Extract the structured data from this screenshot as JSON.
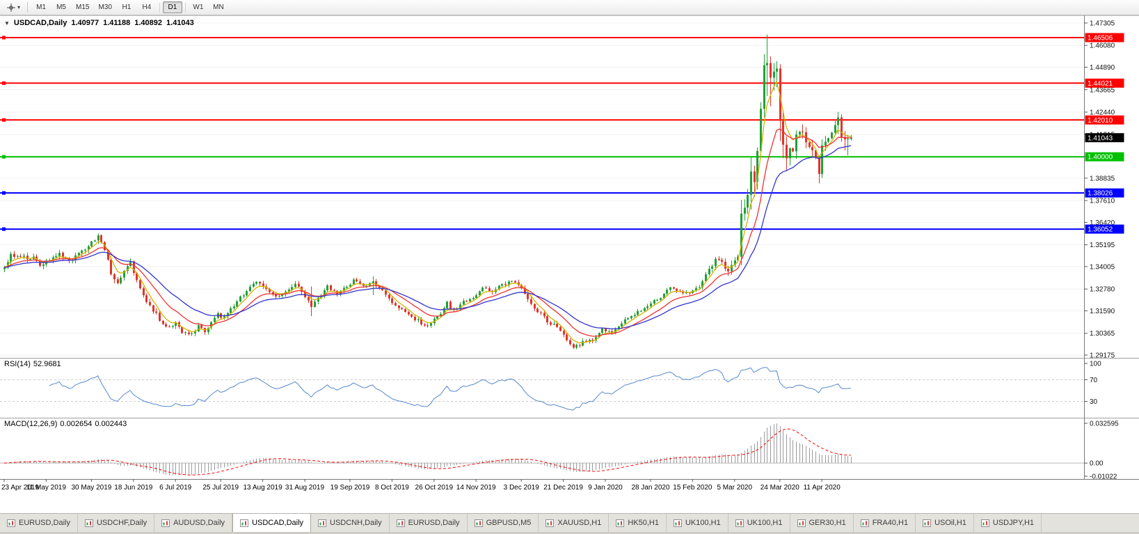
{
  "toolbar": {
    "cursor_tool_tooltip": "Cursor",
    "dropdown_caret": "▾",
    "timeframes": [
      {
        "label": "M1",
        "active": false
      },
      {
        "label": "M5",
        "active": false
      },
      {
        "label": "M15",
        "active": false
      },
      {
        "label": "M30",
        "active": false
      },
      {
        "label": "H1",
        "active": false
      },
      {
        "label": "H4",
        "active": false
      },
      {
        "label": "D1",
        "active": true
      },
      {
        "label": "W1",
        "active": false
      },
      {
        "label": "MN",
        "active": false
      }
    ]
  },
  "chart": {
    "info_bar": {
      "collapse_arrow": "▼",
      "symbol": "USDCAD,Daily",
      "open": "1.40977",
      "high": "1.41188",
      "low": "1.40892",
      "close": "1.41043"
    },
    "price_axis_ticks": [
      "1.47305",
      "1.46080",
      "1.44890",
      "1.43665",
      "1.42440",
      "1.41215",
      "1.40025",
      "1.38835",
      "1.37610",
      "1.36420",
      "1.35195",
      "1.34005",
      "1.32780",
      "1.31590",
      "1.30365",
      "1.29175"
    ],
    "current_price_tag": {
      "label": "1.41043",
      "color": "#000000"
    },
    "date_axis": [
      "23 Apr 2019",
      "11 May 2019",
      "30 May 2019",
      "18 Jun 2019",
      "6 Jul 2019",
      "25 Jul 2019",
      "13 Aug 2019",
      "31 Aug 2019",
      "19 Sep 2019",
      "8 Oct 2019",
      "26 Oct 2019",
      "14 Nov 2019",
      "3 Dec 2019",
      "21 Dec 2019",
      "9 Jan 2020",
      "28 Jan 2020",
      "15 Feb 2020",
      "5 Mar 2020",
      "24 Mar 2020",
      "11 Apr 2020"
    ]
  },
  "rsi_panel": {
    "label": "RSI(14)",
    "value": "52.9681",
    "axis_labels": [
      "100",
      "70",
      "30"
    ]
  },
  "macd_panel": {
    "label": "MACD(12,26,9)",
    "macd_value": "0.002654",
    "signal_value": "0.002443",
    "axis_labels": [
      "0.032595",
      "0.00",
      "-0.01022"
    ]
  },
  "tab_bar": {
    "tabs": [
      {
        "label": "EURUSD,Daily",
        "active": false
      },
      {
        "label": "USDCHF,Daily",
        "active": false
      },
      {
        "label": "AUDUSD,Daily",
        "active": false
      },
      {
        "label": "USDCAD,Daily",
        "active": true
      },
      {
        "label": "USDCNH,Daily",
        "active": false
      },
      {
        "label": "EURUSD,Daily",
        "active": false
      },
      {
        "label": "GBPUSD,M5",
        "active": false
      },
      {
        "label": "XAUUSD,H1",
        "active": false
      },
      {
        "label": "HK50,H1",
        "active": false
      },
      {
        "label": "UK100,H1",
        "active": false
      },
      {
        "label": "UK100,H1",
        "active": false
      },
      {
        "label": "GER30,H1",
        "active": false
      },
      {
        "label": "FRA40,H1",
        "active": false
      },
      {
        "label": "USOil,H1",
        "active": false
      },
      {
        "label": "USDJPY,H1",
        "active": false
      }
    ]
  },
  "chart_data": {
    "type": "candlestick",
    "title": "USDCAD,Daily",
    "ohlc_last": {
      "open": 1.40977,
      "high": 1.41188,
      "low": 1.40892,
      "close": 1.41043
    },
    "y_ticks": [
      1.47305,
      1.4608,
      1.4489,
      1.43665,
      1.4244,
      1.41215,
      1.40025,
      1.38835,
      1.3761,
      1.3642,
      1.35195,
      1.34005,
      1.3278,
      1.3159,
      1.30365,
      1.29175
    ],
    "horizontal_lines": [
      {
        "price": 1.46506,
        "label": "1.46506",
        "color": "#FF0000"
      },
      {
        "price": 1.44021,
        "label": "1.44021",
        "color": "#FF0000"
      },
      {
        "price": 1.4201,
        "label": "1.42010",
        "color": "#FF0000"
      },
      {
        "price": 1.4,
        "label": "1.40000",
        "color": "#00C000"
      },
      {
        "price": 1.38026,
        "label": "1.38026",
        "color": "#0000FF"
      },
      {
        "price": 1.36052,
        "label": "1.36052",
        "color": "#0000FF"
      }
    ],
    "x_dates": [
      "23 Apr 2019",
      "11 May 2019",
      "30 May 2019",
      "18 Jun 2019",
      "6 Jul 2019",
      "25 Jul 2019",
      "13 Aug 2019",
      "31 Aug 2019",
      "19 Sep 2019",
      "8 Oct 2019",
      "26 Oct 2019",
      "14 Nov 2019",
      "3 Dec 2019",
      "21 Dec 2019",
      "9 Jan 2020",
      "28 Jan 2020",
      "15 Feb 2020",
      "5 Mar 2020",
      "24 Mar 2020",
      "11 Apr 2020"
    ],
    "candle_count": 263,
    "up_color": "#21A038",
    "down_color": "#E0342C",
    "close_anchors": [
      [
        0,
        1.34
      ],
      [
        2,
        1.346
      ],
      [
        5,
        1.3445
      ],
      [
        8,
        1.3455
      ],
      [
        11,
        1.3415
      ],
      [
        14,
        1.3445
      ],
      [
        17,
        1.348
      ],
      [
        20,
        1.3435
      ],
      [
        23,
        1.3465
      ],
      [
        26,
        1.351
      ],
      [
        29,
        1.3555
      ],
      [
        31,
        1.3495
      ],
      [
        33,
        1.336
      ],
      [
        35,
        1.331
      ],
      [
        37,
        1.3385
      ],
      [
        39,
        1.342
      ],
      [
        41,
        1.334
      ],
      [
        43,
        1.325
      ],
      [
        45,
        1.319
      ],
      [
        48,
        1.311
      ],
      [
        51,
        1.307
      ],
      [
        53,
        1.3105
      ],
      [
        55,
        1.304
      ],
      [
        58,
        1.3035
      ],
      [
        60,
        1.3075
      ],
      [
        62,
        1.304
      ],
      [
        64,
        1.309
      ],
      [
        66,
        1.314
      ],
      [
        68,
        1.312
      ],
      [
        70,
        1.3165
      ],
      [
        72,
        1.3215
      ],
      [
        75,
        1.3265
      ],
      [
        78,
        1.332
      ],
      [
        81,
        1.3285
      ],
      [
        84,
        1.3235
      ],
      [
        87,
        1.327
      ],
      [
        90,
        1.331
      ],
      [
        93,
        1.323
      ],
      [
        95,
        1.318
      ],
      [
        98,
        1.3245
      ],
      [
        100,
        1.329
      ],
      [
        103,
        1.3255
      ],
      [
        106,
        1.33
      ],
      [
        109,
        1.333
      ],
      [
        112,
        1.329
      ],
      [
        114,
        1.332
      ],
      [
        117,
        1.327
      ],
      [
        120,
        1.321
      ],
      [
        123,
        1.316
      ],
      [
        126,
        1.313
      ],
      [
        129,
        1.309
      ],
      [
        132,
        1.3085
      ],
      [
        135,
        1.315
      ],
      [
        137,
        1.32
      ],
      [
        139,
        1.316
      ],
      [
        142,
        1.3205
      ],
      [
        145,
        1.3235
      ],
      [
        148,
        1.3285
      ],
      [
        151,
        1.326
      ],
      [
        154,
        1.33
      ],
      [
        157,
        1.332
      ],
      [
        159,
        1.33
      ],
      [
        161,
        1.325
      ],
      [
        164,
        1.317
      ],
      [
        167,
        1.312
      ],
      [
        170,
        1.308
      ],
      [
        173,
        1.302
      ],
      [
        176,
        1.2958
      ],
      [
        179,
        1.299
      ],
      [
        182,
        1.3
      ],
      [
        185,
        1.306
      ],
      [
        188,
        1.3035
      ],
      [
        191,
        1.309
      ],
      [
        194,
        1.314
      ],
      [
        197,
        1.316
      ],
      [
        200,
        1.32
      ],
      [
        203,
        1.323
      ],
      [
        206,
        1.329
      ],
      [
        209,
        1.326
      ],
      [
        212,
        1.3255
      ],
      [
        215,
        1.329
      ],
      [
        218,
        1.339
      ],
      [
        220,
        1.343
      ],
      [
        222,
        1.343
      ],
      [
        224,
        1.336
      ],
      [
        226,
        1.3425
      ],
      [
        228,
        1.369
      ],
      [
        230,
        1.379
      ],
      [
        232,
        1.3862
      ],
      [
        234,
        1.4262
      ],
      [
        236,
        1.4512
      ],
      [
        238,
        1.4465
      ],
      [
        240,
        1.4196
      ],
      [
        242,
        1.3992
      ],
      [
        244,
        1.406
      ],
      [
        246,
        1.413
      ],
      [
        248,
        1.4075
      ],
      [
        250,
        1.4035
      ],
      [
        252,
        1.3906
      ],
      [
        254,
        1.409
      ],
      [
        256,
        1.4135
      ],
      [
        258,
        1.4215
      ],
      [
        260,
        1.4095
      ],
      [
        262,
        1.41043
      ]
    ],
    "vol_anchors": [
      [
        0,
        1.0
      ],
      [
        30,
        1.3
      ],
      [
        45,
        1.1
      ],
      [
        60,
        0.8
      ],
      [
        90,
        0.8
      ],
      [
        120,
        0.8
      ],
      [
        150,
        0.7
      ],
      [
        165,
        0.9
      ],
      [
        180,
        0.8
      ],
      [
        210,
        0.7
      ],
      [
        222,
        1.2
      ],
      [
        226,
        1.8
      ],
      [
        232,
        2.8
      ],
      [
        240,
        3.0
      ],
      [
        248,
        2.4
      ],
      [
        256,
        1.9
      ],
      [
        262,
        1.2
      ]
    ],
    "key_candles": {
      "95": {
        "h": 1.3292,
        "l": 1.313,
        "c": 1.318
      },
      "114": {
        "h": 1.3348,
        "l": 1.3245,
        "c": 1.332
      },
      "176": {
        "l": 1.2951,
        "c": 1.2958
      },
      "227": {
        "c": 1.3455
      },
      "228": {
        "h": 1.3765,
        "l": 1.3408,
        "c": 1.369
      },
      "229": {
        "h": 1.3768,
        "l": 1.3652,
        "c": 1.3722
      },
      "230": {
        "h": 1.3825,
        "l": 1.3688,
        "c": 1.3792
      },
      "231": {
        "h": 1.3998,
        "l": 1.3712,
        "c": 1.392
      },
      "232": {
        "h": 1.3952,
        "l": 1.3782,
        "c": 1.3862
      },
      "233": {
        "h": 1.4052,
        "l": 1.382,
        "c": 1.4032
      },
      "234": {
        "h": 1.4298,
        "l": 1.3996,
        "c": 1.4262
      },
      "235": {
        "h": 1.456,
        "l": 1.4215,
        "c": 1.45
      },
      "236": {
        "h": 1.4668,
        "l": 1.4332,
        "c": 1.4512
      },
      "237": {
        "h": 1.4548,
        "l": 1.4276,
        "c": 1.4432
      },
      "238": {
        "h": 1.4512,
        "l": 1.4362,
        "c": 1.4465
      },
      "239": {
        "h": 1.4522,
        "l": 1.438,
        "c": 1.4482
      },
      "240": {
        "h": 1.4506,
        "l": 1.4086,
        "c": 1.4196
      },
      "241": {
        "h": 1.4256,
        "l": 1.3992,
        "c": 1.4066
      },
      "242": {
        "h": 1.4112,
        "l": 1.3922,
        "c": 1.3992
      },
      "252": {
        "h": 1.3972,
        "l": 1.3855,
        "c": 1.3906
      },
      "253": {
        "h": 1.4095,
        "l": 1.3885,
        "c": 1.4062
      },
      "258": {
        "h": 1.4245,
        "l": 1.4125,
        "c": 1.4215
      },
      "259": {
        "h": 1.4232,
        "l": 1.4082,
        "c": 1.4108
      },
      "260": {
        "h": 1.414,
        "l": 1.4035,
        "c": 1.4095
      },
      "261": {
        "h": 1.412,
        "l": 1.4008,
        "c": 1.4098
      },
      "262": {
        "o": 1.40977,
        "h": 1.41188,
        "l": 1.40892,
        "c": 1.41043
      }
    },
    "moving_averages": [
      {
        "period": 5,
        "color": "#D2B300"
      },
      {
        "period": 13,
        "color": "#F03030"
      },
      {
        "period": 25,
        "color": "#3333CC"
      }
    ],
    "rsi": {
      "period": 14,
      "current": 52.9681,
      "levels": [
        70,
        30
      ],
      "range": [
        0,
        100
      ],
      "color": "#5588CC"
    },
    "macd": {
      "fast": 12,
      "slow": 26,
      "signal_period": 9,
      "current": 0.002654,
      "current_signal": 0.002443,
      "axis_max": 0.032595,
      "axis_min": -0.01022,
      "histogram_color": "#9A9A9A",
      "signal_color": "#FF0000"
    }
  }
}
